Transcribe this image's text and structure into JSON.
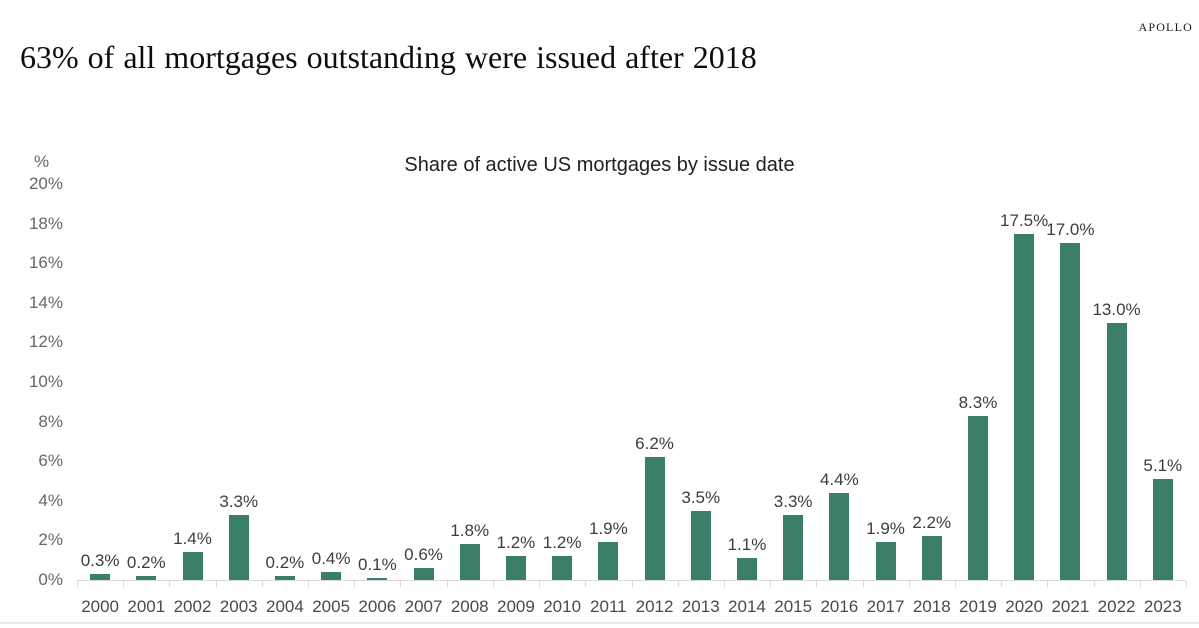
{
  "header": {
    "title": "63% of all mortgages outstanding were issued after 2018",
    "brand": "APOLLO"
  },
  "chart_data": {
    "type": "bar",
    "title": "Share of active US mortgages by issue date",
    "unit_label": "%",
    "categories": [
      "2000",
      "2001",
      "2002",
      "2003",
      "2004",
      "2005",
      "2006",
      "2007",
      "2008",
      "2009",
      "2010",
      "2011",
      "2012",
      "2013",
      "2014",
      "2015",
      "2016",
      "2017",
      "2018",
      "2019",
      "2020",
      "2021",
      "2022",
      "2023"
    ],
    "values": [
      0.3,
      0.2,
      1.4,
      3.3,
      0.2,
      0.4,
      0.1,
      0.6,
      1.8,
      1.2,
      1.2,
      1.9,
      6.2,
      3.5,
      1.1,
      3.3,
      4.4,
      1.9,
      2.2,
      8.3,
      17.5,
      17.0,
      13.0,
      5.1
    ],
    "labels": [
      "0.3%",
      "0.2%",
      "1.4%",
      "3.3%",
      "0.2%",
      "0.4%",
      "0.1%",
      "0.6%",
      "1.8%",
      "1.2%",
      "1.2%",
      "1.9%",
      "6.2%",
      "3.5%",
      "1.1%",
      "3.3%",
      "4.4%",
      "1.9%",
      "2.2%",
      "8.3%",
      "17.5%",
      "17.0%",
      "13.0%",
      "5.1%"
    ],
    "ylim": [
      0,
      20
    ],
    "ytick_step": 2,
    "yticks": [
      "0%",
      "2%",
      "4%",
      "6%",
      "8%",
      "10%",
      "12%",
      "14%",
      "16%",
      "18%",
      "20%"
    ],
    "bar_color": "#3b7f68",
    "grid": false,
    "legend": false
  }
}
